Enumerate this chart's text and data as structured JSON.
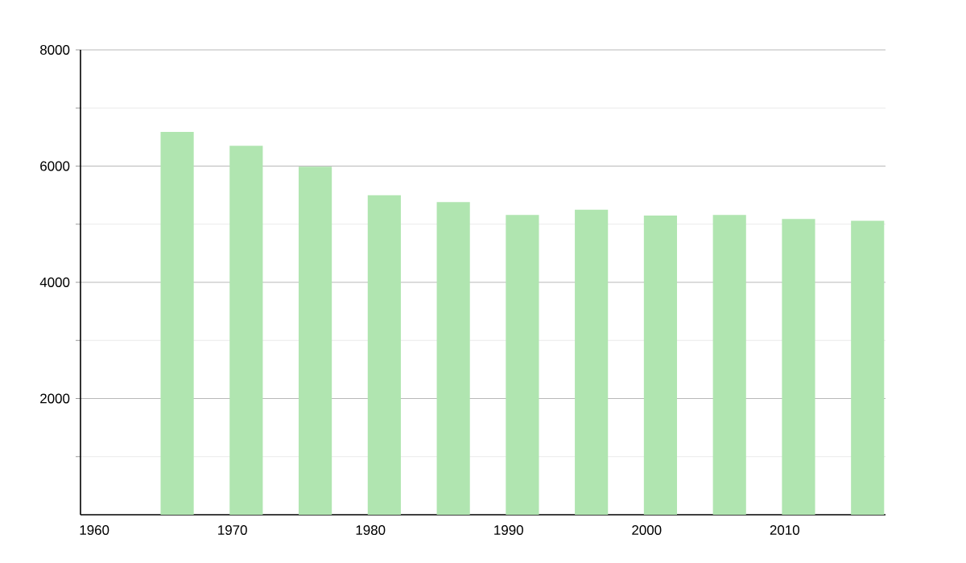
{
  "chart_data": {
    "type": "bar",
    "x": [
      1966,
      1971,
      1976,
      1981,
      1986,
      1991,
      1996,
      2001,
      2006,
      2011,
      2016
    ],
    "values": [
      6590,
      6350,
      5990,
      5500,
      5380,
      5160,
      5250,
      5150,
      5160,
      5090,
      5060
    ],
    "color": "#b0e5b0",
    "xlim": [
      1959,
      2017.3
    ],
    "ylim": [
      0,
      8000
    ],
    "xticks": [
      1960,
      1970,
      1980,
      1990,
      2000,
      2010
    ],
    "yticks": [
      {
        "value": 1000,
        "label": null
      },
      2000,
      {
        "value": 3000,
        "label": null
      },
      4000,
      {
        "value": 5000,
        "label": null
      },
      6000,
      {
        "value": 7000,
        "label": null
      },
      8000
    ],
    "grid": "y"
  }
}
